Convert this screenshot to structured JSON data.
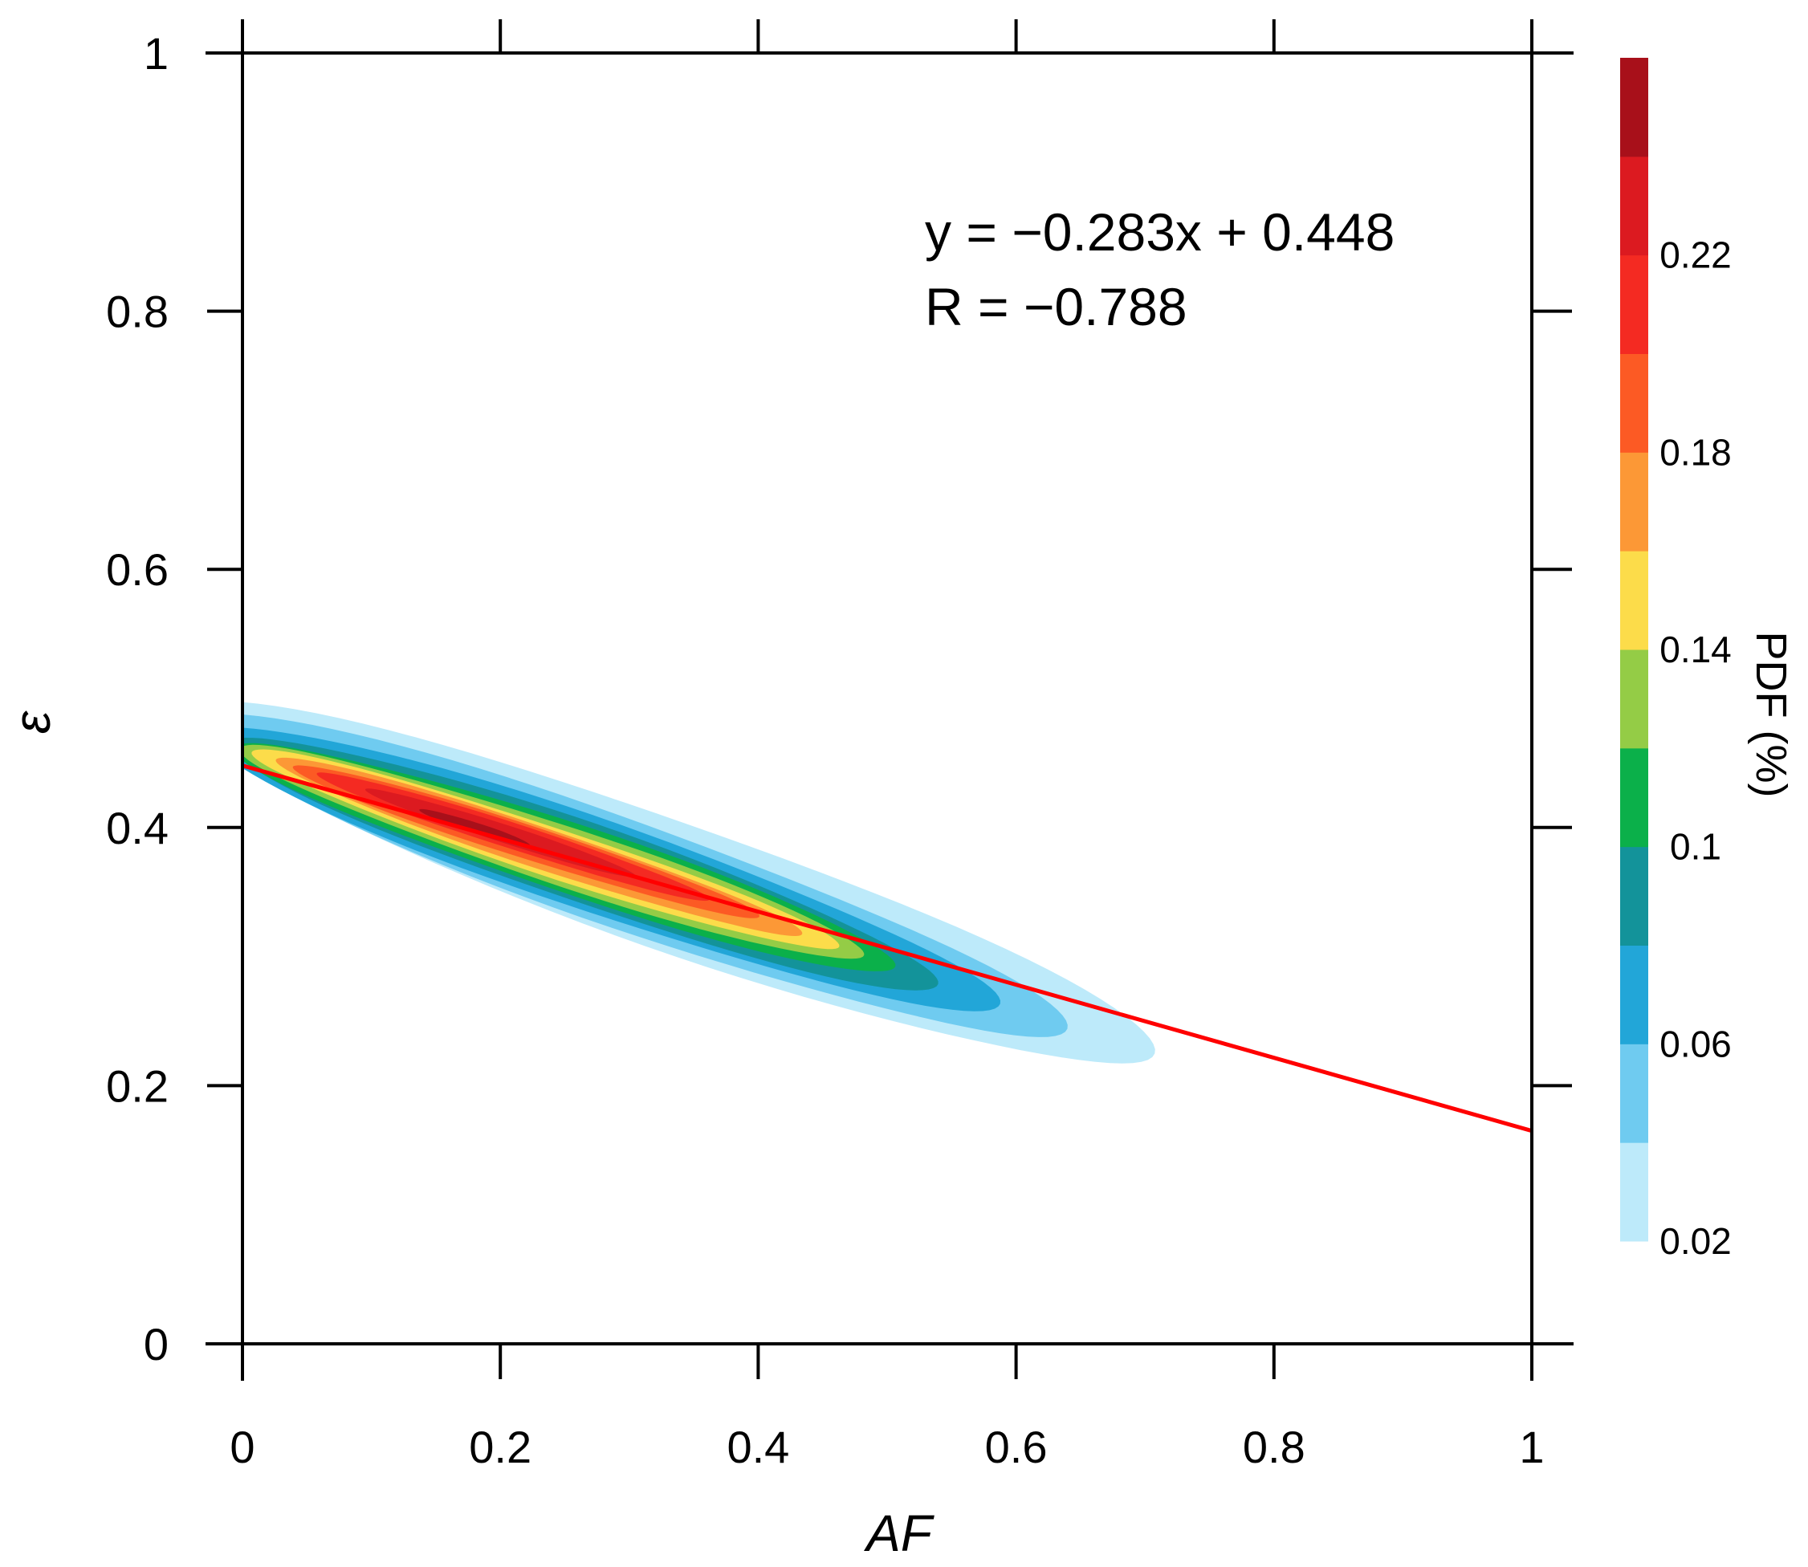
{
  "chart_data": {
    "type": "heatmap",
    "subtype": "filled-contour density (PDF) with linear fit",
    "title": "",
    "xlabel": "AF",
    "ylabel": "ε",
    "xlim": [
      0,
      1
    ],
    "ylim": [
      0,
      1
    ],
    "xticks": [
      0,
      0.2,
      0.4,
      0.6,
      0.8,
      1
    ],
    "xtick_labels": [
      "0",
      "0.2",
      "0.4",
      "0.6",
      "0.8",
      "1"
    ],
    "yticks": [
      0,
      0.2,
      0.4,
      0.6,
      0.8,
      1
    ],
    "ytick_labels": [
      "0",
      "0.2",
      "0.4",
      "0.6",
      "0.8",
      "1"
    ],
    "grid": false,
    "colorbar": {
      "title": "PDF (%)",
      "levels": [
        0.02,
        0.04,
        0.06,
        0.08,
        0.1,
        0.12,
        0.14,
        0.16,
        0.18,
        0.2,
        0.22,
        0.24,
        0.26
      ],
      "colors": [
        "#bdeafa",
        "#6fcbf0",
        "#22a6d8",
        "#13939a",
        "#0bb04a",
        "#94cc46",
        "#fcdc4a",
        "#fc9836",
        "#fc5a24",
        "#f42a22",
        "#dc1a20",
        "#a8101a"
      ],
      "tick_labels": [
        "0.02",
        "0.06",
        "0.1",
        "0.14",
        "0.18",
        "0.22"
      ],
      "tick_values": [
        0.02,
        0.06,
        0.1,
        0.14,
        0.18,
        0.22
      ]
    },
    "density_contours": [
      {
        "level": 0.02,
        "center": [
          0.33,
          0.357
        ],
        "half_length": 0.4,
        "half_width": 0.05,
        "direction": [
          1,
          -0.35
        ]
      },
      {
        "level": 0.04,
        "center": [
          0.3,
          0.363
        ],
        "half_length": 0.36,
        "half_width": 0.042,
        "direction": [
          1,
          -0.35
        ]
      },
      {
        "level": 0.06,
        "center": [
          0.28,
          0.368
        ],
        "half_length": 0.325,
        "half_width": 0.036,
        "direction": [
          1,
          -0.34
        ]
      },
      {
        "level": 0.08,
        "center": [
          0.265,
          0.372
        ],
        "half_length": 0.29,
        "half_width": 0.031,
        "direction": [
          1,
          -0.34
        ]
      },
      {
        "level": 0.1,
        "center": [
          0.25,
          0.377
        ],
        "half_length": 0.27,
        "half_width": 0.027,
        "direction": [
          1,
          -0.33
        ]
      },
      {
        "level": 0.12,
        "center": [
          0.24,
          0.381
        ],
        "half_length": 0.255,
        "half_width": 0.023,
        "direction": [
          1,
          -0.33
        ]
      },
      {
        "level": 0.14,
        "center": [
          0.235,
          0.383
        ],
        "half_length": 0.24,
        "half_width": 0.019,
        "direction": [
          1,
          -0.33
        ]
      },
      {
        "level": 0.16,
        "center": [
          0.23,
          0.385
        ],
        "half_length": 0.215,
        "half_width": 0.016,
        "direction": [
          1,
          -0.33
        ]
      },
      {
        "level": 0.18,
        "center": [
          0.22,
          0.389
        ],
        "half_length": 0.19,
        "half_width": 0.013,
        "direction": [
          1,
          -0.32
        ]
      },
      {
        "level": 0.2,
        "center": [
          0.21,
          0.393
        ],
        "half_length": 0.16,
        "half_width": 0.01,
        "direction": [
          1,
          -0.32
        ]
      },
      {
        "level": 0.22,
        "center": [
          0.2,
          0.396
        ],
        "half_length": 0.11,
        "half_width": 0.007,
        "direction": [
          1,
          -0.32
        ]
      },
      {
        "level": 0.24,
        "center": [
          0.18,
          0.4
        ],
        "half_length": 0.045,
        "half_width": 0.004,
        "direction": [
          1,
          -0.32
        ]
      }
    ],
    "fit_line": {
      "slope": -0.283,
      "intercept": 0.448,
      "x_range": [
        0,
        1
      ],
      "color": "#ff0000"
    },
    "annotations": [
      "y = −0.283x + 0.448",
      "R = −0.788"
    ]
  }
}
